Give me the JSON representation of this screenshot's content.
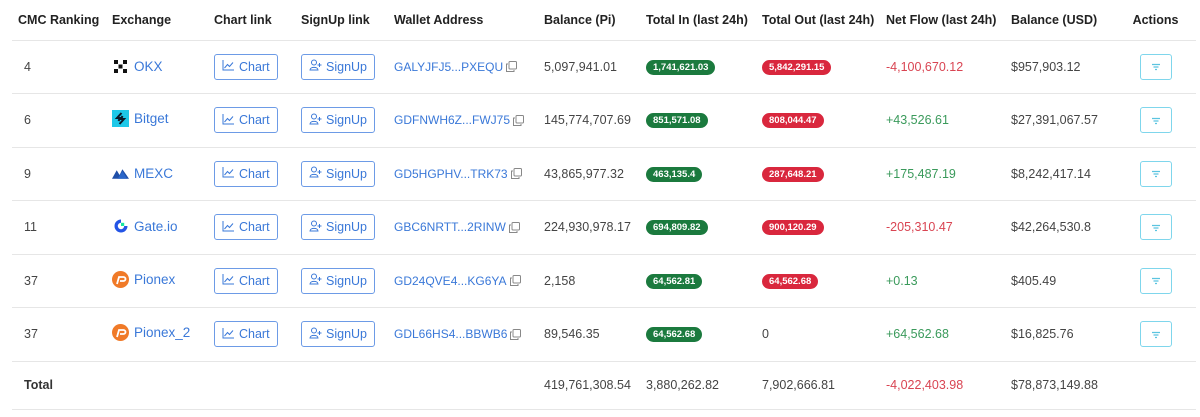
{
  "colors": {
    "link": "#3a78d8",
    "badge_in": "#1b7a3e",
    "badge_out": "#d9273d",
    "positive": "#3a9a5b",
    "negative": "#d94452",
    "action_border": "#7fd6ec"
  },
  "table": {
    "headers": [
      "CMC Ranking",
      "Exchange",
      "Chart link",
      "SignUp link",
      "Wallet Address",
      "Balance (Pi)",
      "Total In (last 24h)",
      "Total Out (last 24h)",
      "Net Flow (last 24h)",
      "Balance (USD)",
      "Actions"
    ],
    "chart_label": "Chart",
    "signup_label": "SignUp",
    "rows": [
      {
        "rank": "4",
        "exchange": "OKX",
        "logo": "okx-logo",
        "wallet": "GALYJFJ5...PXEQU",
        "balance_pi": "5,097,941.01",
        "total_in": "1,741,621.03",
        "total_out": "5,842,291.15",
        "total_out_badge": true,
        "net_flow": "-4,100,670.12",
        "net_sign": "neg",
        "balance_usd": "$957,903.12"
      },
      {
        "rank": "6",
        "exchange": "Bitget",
        "logo": "bitget-logo",
        "wallet": "GDFNWH6Z...FWJ75",
        "balance_pi": "145,774,707.69",
        "total_in": "851,571.08",
        "total_out": "808,044.47",
        "total_out_badge": true,
        "net_flow": "+43,526.61",
        "net_sign": "pos",
        "balance_usd": "$27,391,067.57"
      },
      {
        "rank": "9",
        "exchange": "MEXC",
        "logo": "mexc-logo",
        "wallet": "GD5HGPHV...TRK73",
        "balance_pi": "43,865,977.32",
        "total_in": "463,135.4",
        "total_out": "287,648.21",
        "total_out_badge": true,
        "net_flow": "+175,487.19",
        "net_sign": "pos",
        "balance_usd": "$8,242,417.14"
      },
      {
        "rank": "11",
        "exchange": "Gate.io",
        "logo": "gateio-logo",
        "wallet": "GBC6NRTT...2RINW",
        "balance_pi": "224,930,978.17",
        "total_in": "694,809.82",
        "total_out": "900,120.29",
        "total_out_badge": true,
        "net_flow": "-205,310.47",
        "net_sign": "neg",
        "balance_usd": "$42,264,530.8"
      },
      {
        "rank": "37",
        "exchange": "Pionex",
        "logo": "pionex-logo",
        "wallet": "GD24QVE4...KG6YA",
        "balance_pi": "2,158",
        "total_in": "64,562.81",
        "total_out": "64,562.68",
        "total_out_badge": true,
        "net_flow": "+0.13",
        "net_sign": "pos",
        "balance_usd": "$405.49"
      },
      {
        "rank": "37",
        "exchange": "Pionex_2",
        "logo": "pionex-logo",
        "wallet": "GDL66HS4...BBWB6",
        "balance_pi": "89,546.35",
        "total_in": "64,562.68",
        "total_out": "0",
        "total_out_badge": false,
        "net_flow": "+64,562.68",
        "net_sign": "pos",
        "balance_usd": "$16,825.76"
      }
    ],
    "total": {
      "label": "Total",
      "balance_pi": "419,761,308.54",
      "total_in": "3,880,262.82",
      "total_out": "7,902,666.81",
      "net_flow": "-4,022,403.98",
      "balance_usd": "$78,873,149.88"
    }
  }
}
